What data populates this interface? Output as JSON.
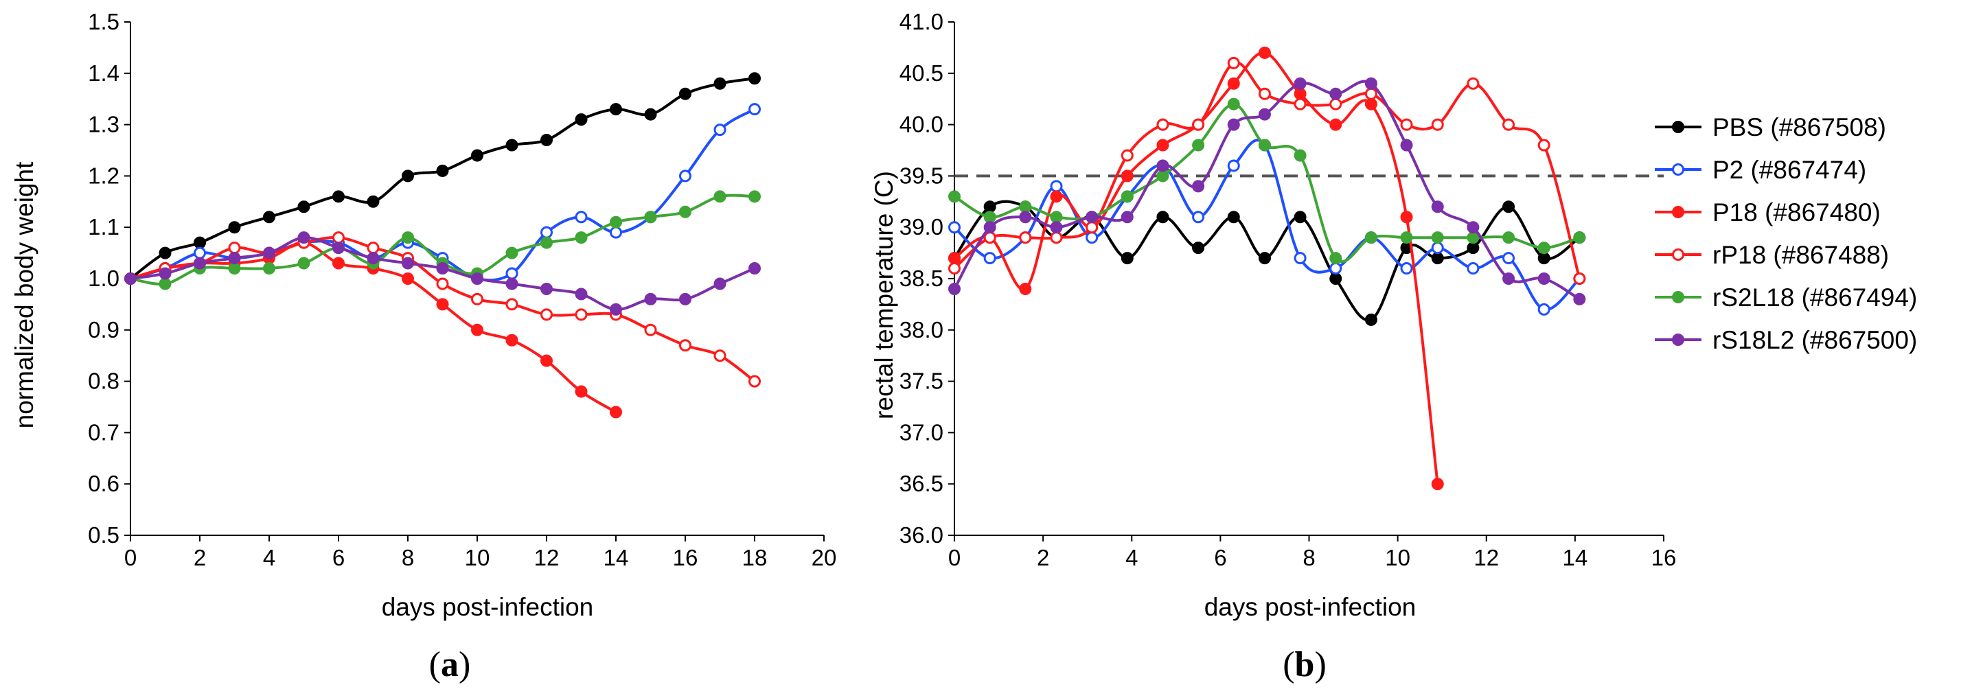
{
  "chart_data": [
    {
      "type": "line",
      "panel_label": "(a)",
      "panel_letter": "a",
      "xlabel": "days post-infection",
      "ylabel": "normalized body weight",
      "xlim": [
        0,
        20
      ],
      "ylim": [
        0.5,
        1.5
      ],
      "xticks": [
        0,
        2,
        4,
        6,
        8,
        10,
        12,
        14,
        16,
        18,
        20
      ],
      "yticks": [
        0.5,
        0.6,
        0.7,
        0.8,
        0.9,
        1.0,
        1.1,
        1.2,
        1.3,
        1.4,
        1.5
      ],
      "ytick_labels": [
        "0.5",
        "0.6",
        "0.7",
        "0.8",
        "0.9",
        "1.0",
        "1.1",
        "1.2",
        "1.3",
        "1.4",
        "1.5"
      ],
      "series": [
        {
          "name": "PBS (#867508)",
          "color": "#000000",
          "marker": "filled",
          "x": [
            0,
            1,
            2,
            3,
            4,
            5,
            6,
            7,
            8,
            9,
            10,
            11,
            12,
            13,
            14,
            15,
            16,
            17,
            18
          ],
          "y": [
            1.0,
            1.05,
            1.07,
            1.1,
            1.12,
            1.14,
            1.16,
            1.15,
            1.2,
            1.21,
            1.24,
            1.26,
            1.27,
            1.31,
            1.33,
            1.32,
            1.36,
            1.38,
            1.39
          ]
        },
        {
          "name": "P2 (#867474)",
          "color": "#1f4fff",
          "marker": "open",
          "x": [
            0,
            1,
            2,
            3,
            4,
            5,
            6,
            7,
            8,
            9,
            10,
            11,
            12,
            13,
            14,
            15,
            16,
            17,
            18
          ],
          "y": [
            1.0,
            1.02,
            1.05,
            1.04,
            1.05,
            1.07,
            1.07,
            1.04,
            1.07,
            1.04,
            1.0,
            1.01,
            1.09,
            1.12,
            1.09,
            1.12,
            1.2,
            1.29,
            1.33
          ]
        },
        {
          "name": "P18 (#867480)",
          "color": "#ff1a1a",
          "marker": "filled",
          "x": [
            0,
            1,
            2,
            3,
            4,
            5,
            6,
            7,
            8,
            9,
            10,
            11,
            12,
            13,
            14
          ],
          "y": [
            1.0,
            1.02,
            1.03,
            1.03,
            1.04,
            1.07,
            1.03,
            1.02,
            1.0,
            0.95,
            0.9,
            0.88,
            0.84,
            0.78,
            0.74
          ]
        },
        {
          "name": "rP18 (#867488)",
          "color": "#ff1a1a",
          "marker": "open",
          "x": [
            0,
            1,
            2,
            3,
            4,
            5,
            6,
            7,
            8,
            9,
            10,
            11,
            12,
            13,
            14,
            15,
            16,
            17,
            18
          ],
          "y": [
            1.0,
            1.02,
            1.03,
            1.06,
            1.05,
            1.07,
            1.08,
            1.06,
            1.04,
            0.99,
            0.96,
            0.95,
            0.93,
            0.93,
            0.93,
            0.9,
            0.87,
            0.85,
            0.8
          ]
        },
        {
          "name": "rS2L18 (#867494)",
          "color": "#3fa535",
          "marker": "filled",
          "x": [
            0,
            1,
            2,
            3,
            4,
            5,
            6,
            7,
            8,
            9,
            10,
            11,
            12,
            13,
            14,
            15,
            16,
            17,
            18
          ],
          "y": [
            1.0,
            0.99,
            1.02,
            1.02,
            1.02,
            1.03,
            1.06,
            1.03,
            1.08,
            1.03,
            1.01,
            1.05,
            1.07,
            1.08,
            1.11,
            1.12,
            1.13,
            1.16,
            1.16
          ]
        },
        {
          "name": "rS18L2 (#867500)",
          "color": "#7b2fa8",
          "marker": "filled",
          "x": [
            0,
            1,
            2,
            3,
            4,
            5,
            6,
            7,
            8,
            9,
            10,
            11,
            12,
            13,
            14,
            15,
            16,
            17,
            18
          ],
          "y": [
            1.0,
            1.01,
            1.03,
            1.04,
            1.05,
            1.08,
            1.06,
            1.04,
            1.03,
            1.02,
            1.0,
            0.99,
            0.98,
            0.97,
            0.94,
            0.96,
            0.96,
            0.99,
            1.02
          ]
        }
      ]
    },
    {
      "type": "line",
      "panel_label": "(b)",
      "panel_letter": "b",
      "xlabel": "days post-infection",
      "ylabel": "rectal temperature (C)",
      "xlim": [
        0,
        16
      ],
      "ylim": [
        36.0,
        41.0
      ],
      "xticks": [
        0,
        2,
        4,
        6,
        8,
        10,
        12,
        14,
        16
      ],
      "yticks": [
        36.0,
        36.5,
        37.0,
        37.5,
        38.0,
        38.5,
        39.0,
        39.5,
        40.0,
        40.5,
        41.0
      ],
      "ytick_labels": [
        "36.0",
        "36.5",
        "37.0",
        "37.5",
        "38.0",
        "38.5",
        "39.0",
        "39.5",
        "40.0",
        "40.5",
        "41.0"
      ],
      "reference_line": {
        "y": 39.5,
        "style": "dashed",
        "color": "#555555"
      },
      "series": [
        {
          "name": "PBS (#867508)",
          "color": "#000000",
          "marker": "filled",
          "x": [
            0,
            0.8,
            1.6,
            2.3,
            3.1,
            3.9,
            4.7,
            5.5,
            6.3,
            7.0,
            7.8,
            8.6,
            9.4,
            10.2,
            10.9,
            11.7,
            12.5,
            13.3,
            14.1
          ],
          "y": [
            38.7,
            39.2,
            39.2,
            38.9,
            39.1,
            38.7,
            39.1,
            38.8,
            39.1,
            38.7,
            39.1,
            38.5,
            38.1,
            38.8,
            38.7,
            38.8,
            39.2,
            38.7,
            38.9
          ]
        },
        {
          "name": "P2 (#867474)",
          "color": "#1f4fff",
          "marker": "open",
          "x": [
            0,
            0.8,
            1.6,
            2.3,
            3.1,
            3.9,
            4.7,
            5.5,
            6.3,
            7.0,
            7.8,
            8.6,
            9.4,
            10.2,
            10.9,
            11.7,
            12.5,
            13.3,
            14.1
          ],
          "y": [
            39.0,
            38.7,
            38.9,
            39.4,
            38.9,
            39.3,
            39.6,
            39.1,
            39.6,
            39.8,
            38.7,
            38.6,
            38.9,
            38.6,
            38.8,
            38.6,
            38.7,
            38.2,
            38.5
          ]
        },
        {
          "name": "P18 (#867480)",
          "color": "#ff1a1a",
          "marker": "filled",
          "x": [
            0,
            0.8,
            1.6,
            2.3,
            3.1,
            3.9,
            4.7,
            5.5,
            6.3,
            7.0,
            7.8,
            8.6,
            9.4,
            10.2,
            10.9
          ],
          "y": [
            38.7,
            38.9,
            38.4,
            39.3,
            39.0,
            39.5,
            39.8,
            40.0,
            40.4,
            40.7,
            40.3,
            40.0,
            40.2,
            39.1,
            36.5
          ]
        },
        {
          "name": "rP18 (#867488)",
          "color": "#ff1a1a",
          "marker": "open",
          "x": [
            0,
            0.8,
            1.6,
            2.3,
            3.1,
            3.9,
            4.7,
            5.5,
            6.3,
            7.0,
            7.8,
            8.6,
            9.4,
            10.2,
            10.9,
            11.7,
            12.5,
            13.3,
            14.1
          ],
          "y": [
            38.6,
            38.9,
            38.9,
            38.9,
            39.0,
            39.7,
            40.0,
            40.0,
            40.6,
            40.3,
            40.2,
            40.2,
            40.3,
            40.0,
            40.0,
            40.4,
            40.0,
            39.8,
            38.5
          ]
        },
        {
          "name": "rS2L18 (#867494)",
          "color": "#3fa535",
          "marker": "filled",
          "x": [
            0,
            0.8,
            1.6,
            2.3,
            3.1,
            3.9,
            4.7,
            5.5,
            6.3,
            7.0,
            7.8,
            8.6,
            9.4,
            10.2,
            10.9,
            11.7,
            12.5,
            13.3,
            14.1
          ],
          "y": [
            39.3,
            39.1,
            39.2,
            39.1,
            39.1,
            39.3,
            39.5,
            39.8,
            40.2,
            39.8,
            39.7,
            38.7,
            38.9,
            38.9,
            38.9,
            38.9,
            38.9,
            38.8,
            38.9
          ]
        },
        {
          "name": "rS18L2 (#867500)",
          "color": "#7b2fa8",
          "marker": "filled",
          "x": [
            0,
            0.8,
            1.6,
            2.3,
            3.1,
            3.9,
            4.7,
            5.5,
            6.3,
            7.0,
            7.8,
            8.6,
            9.4,
            10.2,
            10.9,
            11.7,
            12.5,
            13.3,
            14.1
          ],
          "y": [
            38.4,
            39.0,
            39.1,
            39.0,
            39.1,
            39.1,
            39.6,
            39.4,
            40.0,
            40.1,
            40.4,
            40.3,
            40.4,
            39.8,
            39.2,
            39.0,
            38.5,
            38.5,
            38.3
          ]
        }
      ]
    }
  ],
  "legend": {
    "placement": "right",
    "entries": [
      {
        "label": "PBS (#867508)",
        "color": "#000000",
        "marker": "filled"
      },
      {
        "label": "P2 (#867474)",
        "color": "#1f4fff",
        "marker": "open"
      },
      {
        "label": "P18 (#867480)",
        "color": "#ff1a1a",
        "marker": "filled"
      },
      {
        "label": "rP18 (#867488)",
        "color": "#ff1a1a",
        "marker": "open"
      },
      {
        "label": "rS2L18 (#867494)",
        "color": "#3fa535",
        "marker": "filled"
      },
      {
        "label": "rS18L2 (#867500)",
        "color": "#7b2fa8",
        "marker": "filled"
      }
    ]
  }
}
